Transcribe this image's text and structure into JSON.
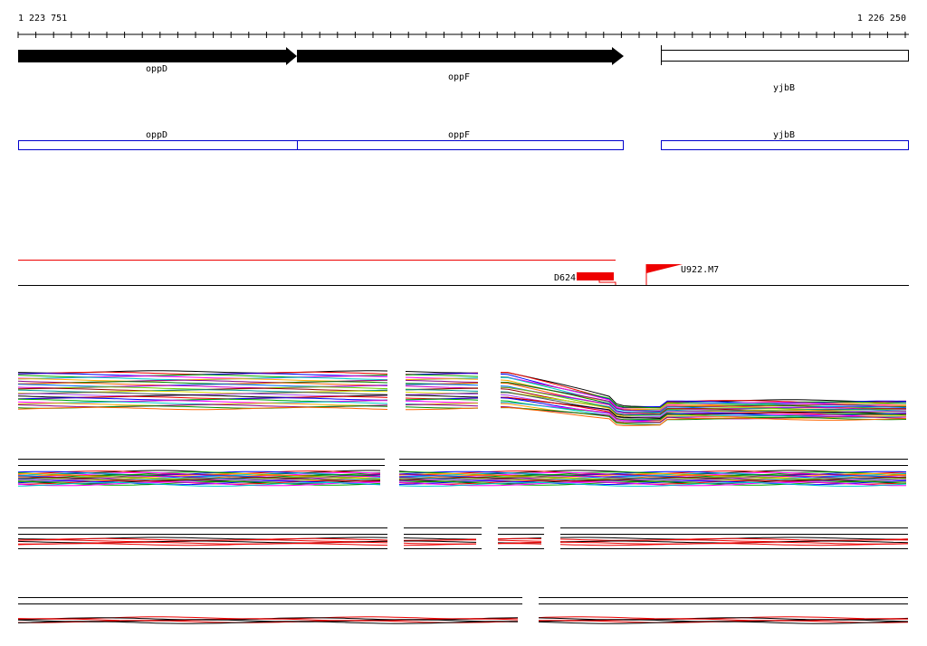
{
  "ruler": {
    "start": "1 223 751",
    "end": "1 226 250"
  },
  "genes": [
    {
      "label": "oppD"
    },
    {
      "label": "oppF"
    },
    {
      "label": "yjbB"
    }
  ],
  "annotations": [
    {
      "label": "oppD"
    },
    {
      "label": "oppF"
    },
    {
      "label": "yjbB"
    }
  ],
  "features": [
    {
      "label": "D624"
    },
    {
      "label": "U922.M7"
    }
  ]
}
